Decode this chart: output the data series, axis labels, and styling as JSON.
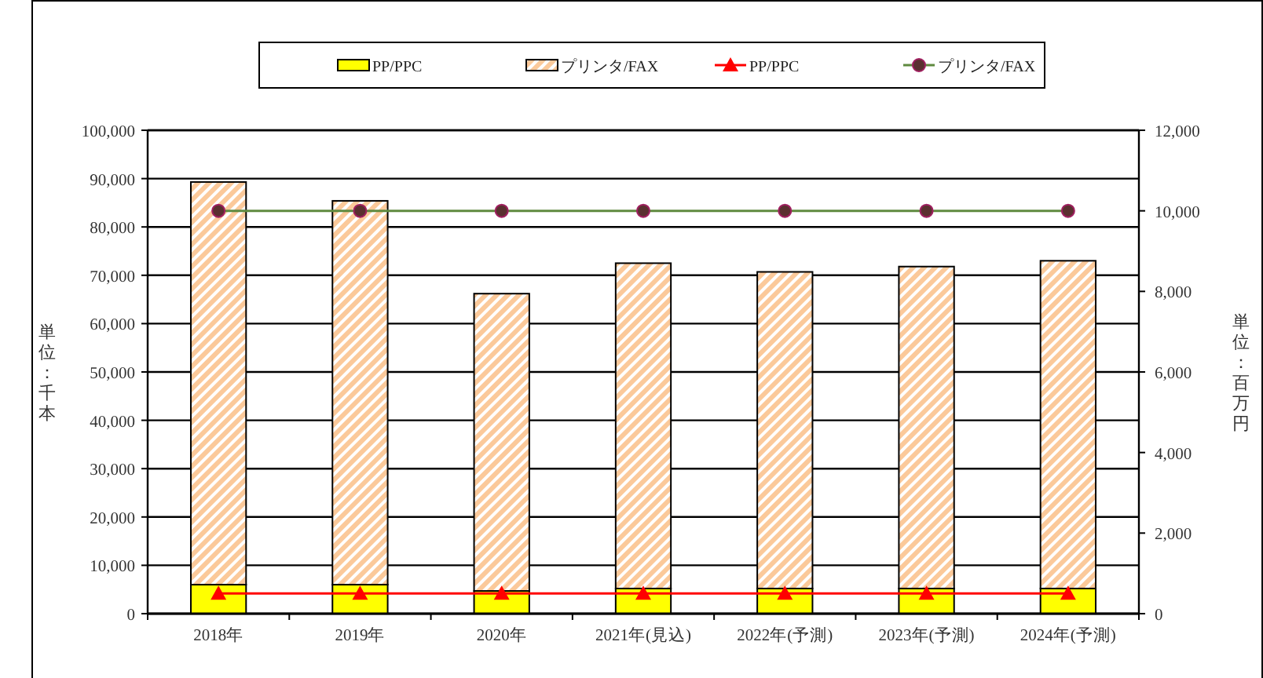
{
  "chart_data": {
    "type": "bar",
    "stacked": true,
    "categories": [
      "2018年",
      "2019年",
      "2020年",
      "2021年(見込)",
      "2022年(予測)",
      "2023年(予測)",
      "2024年(予測)"
    ],
    "series": [
      {
        "name": "PP/PPC",
        "color": "#ffff00",
        "values": [
          6000,
          6000,
          4700,
          5200,
          5200,
          5200,
          5200
        ]
      },
      {
        "name": "プリンタ/FAX",
        "color": "#fbc99a",
        "values": [
          83300,
          79400,
          61500,
          67300,
          65500,
          66600,
          67800
        ]
      },
      {
        "name": "PP/PPC",
        "type": "line",
        "axis": "y2",
        "marker": "triangle",
        "color": "#ff0000",
        "values": [
          500,
          500,
          500,
          500,
          500,
          500,
          500
        ]
      },
      {
        "name": "プリンタ/FAX",
        "type": "line",
        "axis": "y2",
        "marker": "circle",
        "color": "#5f8a3f",
        "values": [
          10000,
          10000,
          10000,
          10000,
          10000,
          10000,
          10000
        ]
      }
    ],
    "ylim": [
      0,
      100000
    ],
    "yticks": [
      {
        "value": 0,
        "label": "0"
      },
      {
        "value": 10000,
        "label": "10,000"
      },
      {
        "value": 20000,
        "label": "20,000"
      },
      {
        "value": 30000,
        "label": "30,000"
      },
      {
        "value": 40000,
        "label": "40,000"
      },
      {
        "value": 50000,
        "label": "50,000"
      },
      {
        "value": 60000,
        "label": "60,000"
      },
      {
        "value": 70000,
        "label": "70,000"
      },
      {
        "value": 80000,
        "label": "80,000"
      },
      {
        "value": 90000,
        "label": "90,000"
      },
      {
        "value": 100000,
        "label": "100,000"
      }
    ],
    "y2lim": [
      0,
      12000
    ],
    "y2ticks": [
      {
        "value": 0,
        "label": "0"
      },
      {
        "value": 2000,
        "label": "2,000"
      },
      {
        "value": 4000,
        "label": "4,000"
      },
      {
        "value": 6000,
        "label": "6,000"
      },
      {
        "value": 8000,
        "label": "8,000"
      },
      {
        "value": 10000,
        "label": "10,000"
      },
      {
        "value": 12000,
        "label": "12,000"
      }
    ],
    "ylabel": "単位：千本",
    "y2label": "単位：百万円",
    "grid": "y",
    "legend": "top"
  }
}
